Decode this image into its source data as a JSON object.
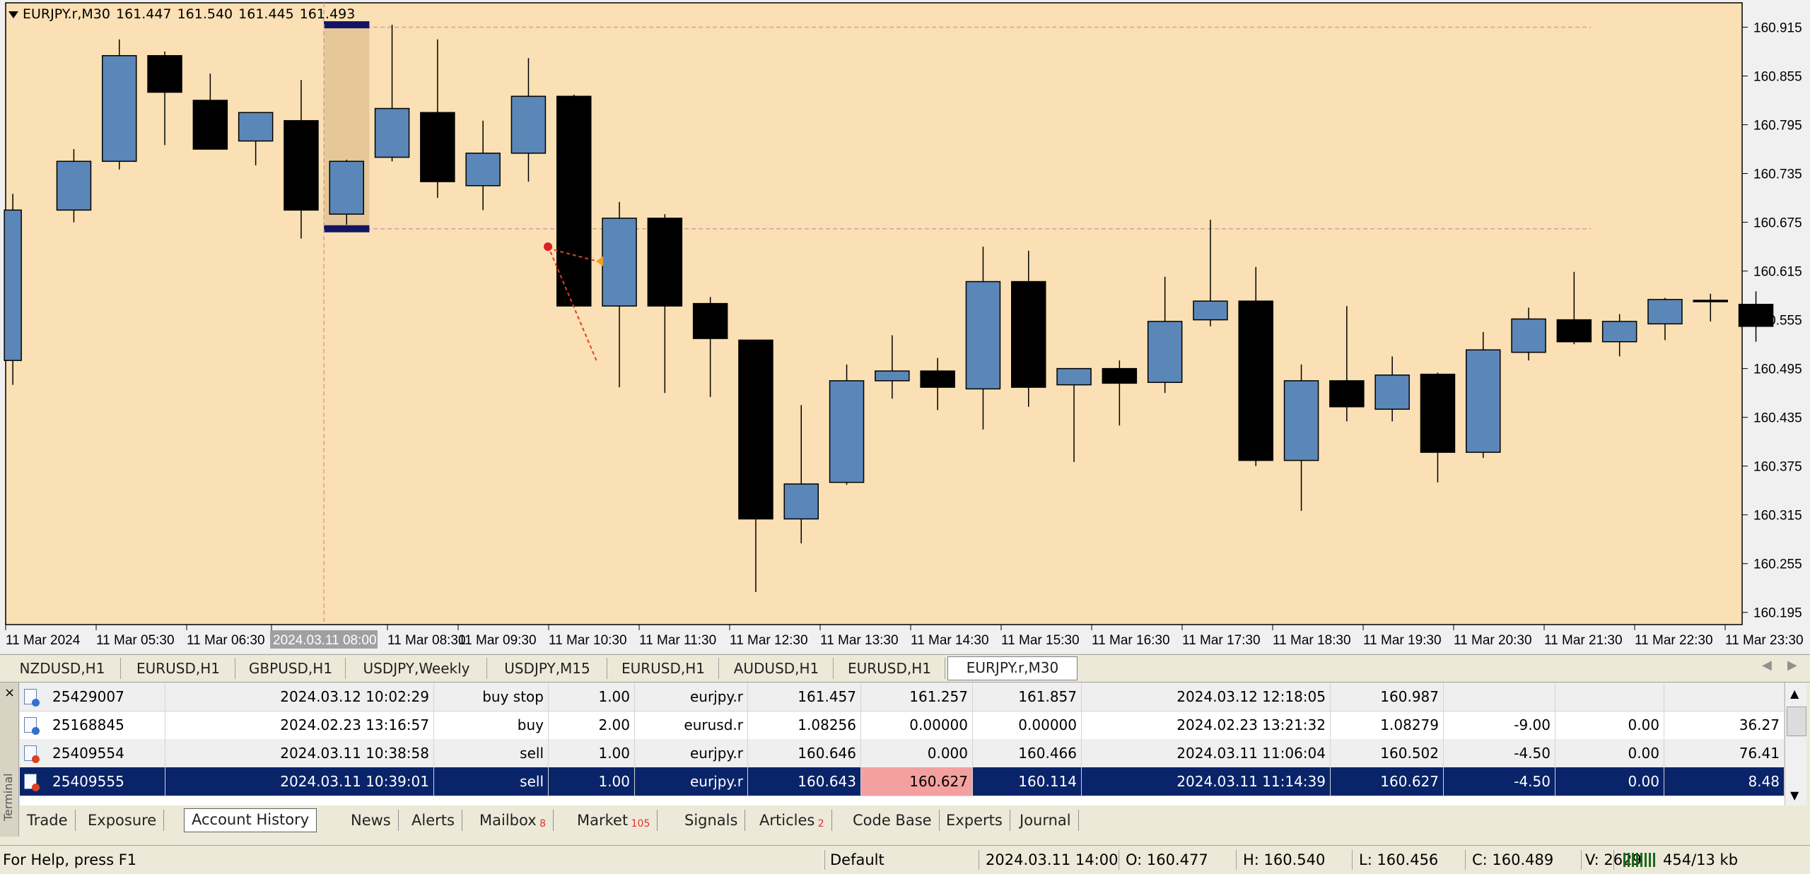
{
  "chart": {
    "symbol": "EURJPY.r,M30",
    "open": "161.447",
    "high": "161.540",
    "low": "161.445",
    "close": "161.493",
    "price_min": 160.18,
    "price_max": 160.945,
    "y_labels": [
      "160.915",
      "160.855",
      "160.795",
      "160.735",
      "160.675",
      "160.615",
      "160.555",
      "160.495",
      "160.435",
      "160.375",
      "160.315",
      "160.255",
      "160.195"
    ],
    "x_labels": [
      "11 Mar 2024",
      "11 Mar 05:30",
      "11 Mar 06:30",
      "2024.03.11 08:00",
      "11 Mar 08:30",
      "11 Mar 09:30",
      "11 Mar 10:30",
      "11 Mar 11:30",
      "11 Mar 12:30",
      "11 Mar 13:30",
      "11 Mar 14:30",
      "11 Mar 15:30",
      "11 Mar 16:30",
      "11 Mar 17:30",
      "11 Mar 18:30",
      "11 Mar 19:30",
      "11 Mar 20:30",
      "11 Mar 21:30",
      "11 Mar 22:30",
      "11 Mar 23:30"
    ],
    "highlight_x_label": "2024.03.11 08:00",
    "level_lines": [
      160.915,
      160.667
    ],
    "colors": {
      "background": "#fae0b4",
      "bull": "#5b87b8",
      "bear": "#000000",
      "highlight_band": "#e6c898",
      "level": "#d0a0a8"
    },
    "candles": [
      {
        "o": 160.505,
        "h": 160.71,
        "l": 160.475,
        "c": 160.69
      },
      {
        "o": 160.69,
        "h": 160.765,
        "l": 160.675,
        "c": 160.75
      },
      {
        "o": 160.75,
        "h": 160.9,
        "l": 160.74,
        "c": 160.88
      },
      {
        "o": 160.88,
        "h": 160.885,
        "l": 160.77,
        "c": 160.835
      },
      {
        "o": 160.825,
        "h": 160.858,
        "l": 160.77,
        "c": 160.765
      },
      {
        "o": 160.775,
        "h": 160.808,
        "l": 160.745,
        "c": 160.81
      },
      {
        "o": 160.8,
        "h": 160.85,
        "l": 160.655,
        "c": 160.69
      },
      {
        "o": 160.685,
        "h": 160.752,
        "l": 160.672,
        "c": 160.75
      },
      {
        "o": 160.755,
        "h": 160.918,
        "l": 160.75,
        "c": 160.815
      },
      {
        "o": 160.81,
        "h": 160.9,
        "l": 160.705,
        "c": 160.725
      },
      {
        "o": 160.72,
        "h": 160.8,
        "l": 160.69,
        "c": 160.76
      },
      {
        "o": 160.76,
        "h": 160.877,
        "l": 160.725,
        "c": 160.83
      },
      {
        "o": 160.83,
        "h": 160.832,
        "l": 160.57,
        "c": 160.572
      },
      {
        "o": 160.572,
        "h": 160.7,
        "l": 160.472,
        "c": 160.68
      },
      {
        "o": 160.68,
        "h": 160.685,
        "l": 160.465,
        "c": 160.572
      },
      {
        "o": 160.575,
        "h": 160.583,
        "l": 160.46,
        "c": 160.532
      },
      {
        "o": 160.53,
        "h": 160.53,
        "l": 160.22,
        "c": 160.31
      },
      {
        "o": 160.31,
        "h": 160.45,
        "l": 160.28,
        "c": 160.353
      },
      {
        "o": 160.355,
        "h": 160.5,
        "l": 160.352,
        "c": 160.48
      },
      {
        "o": 160.48,
        "h": 160.536,
        "l": 160.458,
        "c": 160.492
      },
      {
        "o": 160.492,
        "h": 160.508,
        "l": 160.444,
        "c": 160.472
      },
      {
        "o": 160.47,
        "h": 160.645,
        "l": 160.42,
        "c": 160.602
      },
      {
        "o": 160.602,
        "h": 160.64,
        "l": 160.448,
        "c": 160.472
      },
      {
        "o": 160.475,
        "h": 160.495,
        "l": 160.38,
        "c": 160.495
      },
      {
        "o": 160.495,
        "h": 160.505,
        "l": 160.425,
        "c": 160.477
      },
      {
        "o": 160.478,
        "h": 160.608,
        "l": 160.465,
        "c": 160.553
      },
      {
        "o": 160.555,
        "h": 160.678,
        "l": 160.547,
        "c": 160.578
      },
      {
        "o": 160.578,
        "h": 160.62,
        "l": 160.375,
        "c": 160.382
      },
      {
        "o": 160.382,
        "h": 160.5,
        "l": 160.32,
        "c": 160.48
      },
      {
        "o": 160.48,
        "h": 160.572,
        "l": 160.43,
        "c": 160.448
      },
      {
        "o": 160.445,
        "h": 160.51,
        "l": 160.43,
        "c": 160.487
      },
      {
        "o": 160.488,
        "h": 160.49,
        "l": 160.355,
        "c": 160.392
      },
      {
        "o": 160.392,
        "h": 160.54,
        "l": 160.385,
        "c": 160.518
      },
      {
        "o": 160.515,
        "h": 160.57,
        "l": 160.505,
        "c": 160.556
      },
      {
        "o": 160.555,
        "h": 160.614,
        "l": 160.525,
        "c": 160.528
      },
      {
        "o": 160.528,
        "h": 160.562,
        "l": 160.51,
        "c": 160.553
      },
      {
        "o": 160.55,
        "h": 160.582,
        "l": 160.53,
        "c": 160.58
      },
      {
        "o": 160.579,
        "h": 160.587,
        "l": 160.553,
        "c": 160.578
      },
      {
        "o": 160.574,
        "h": 160.59,
        "l": 160.528,
        "c": 160.547
      }
    ]
  },
  "chart_tabs": [
    "NZDUSD,H1",
    "EURUSD,H1",
    "GBPUSD,H1",
    "USDJPY,Weekly",
    "USDJPY,M15",
    "EURUSD,H1",
    "AUDUSD,H1",
    "EURUSD,H1",
    "EURJPY.r,M30"
  ],
  "history": {
    "rows": [
      {
        "ticket": "25429007",
        "open_time": "2024.03.12 10:02:29",
        "type": "buy stop",
        "size": "1.00",
        "symbol": "eurjpy.r",
        "price": "161.457",
        "sl": "161.257",
        "tp": "161.857",
        "close_time": "2024.03.12 12:18:05",
        "close_price": "160.987",
        "commission": "",
        "swap": "",
        "profit": "",
        "icon": "blue"
      },
      {
        "ticket": "25168845",
        "open_time": "2024.02.23 13:16:57",
        "type": "buy",
        "size": "2.00",
        "symbol": "eurusd.r",
        "price": "1.08256",
        "sl": "0.00000",
        "tp": "0.00000",
        "close_time": "2024.02.23 13:21:32",
        "close_price": "1.08279",
        "commission": "-9.00",
        "swap": "0.00",
        "profit": "36.27",
        "icon": "blue"
      },
      {
        "ticket": "25409554",
        "open_time": "2024.03.11 10:38:58",
        "type": "sell",
        "size": "1.00",
        "symbol": "eurjpy.r",
        "price": "160.646",
        "sl": "0.000",
        "tp": "160.466",
        "close_time": "2024.03.11 11:06:04",
        "close_price": "160.502",
        "commission": "-4.50",
        "swap": "0.00",
        "profit": "76.41",
        "icon": "red"
      },
      {
        "ticket": "25409555",
        "open_time": "2024.03.11 10:39:01",
        "type": "sell",
        "size": "1.00",
        "symbol": "eurjpy.r",
        "price": "160.643",
        "sl": "160.627",
        "tp": "160.114",
        "close_time": "2024.03.11 11:14:39",
        "close_price": "160.627",
        "commission": "-4.50",
        "swap": "0.00",
        "profit": "8.48",
        "icon": "red"
      }
    ]
  },
  "terminal": {
    "side_label": "Terminal",
    "close_glyph": "×",
    "tabs": [
      {
        "label": "Trade",
        "badge": ""
      },
      {
        "label": "Exposure",
        "badge": ""
      },
      {
        "label": "Account History",
        "badge": ""
      },
      {
        "label": "News",
        "badge": ""
      },
      {
        "label": "Alerts",
        "badge": ""
      },
      {
        "label": "Mailbox",
        "badge": "8"
      },
      {
        "label": "Market",
        "badge": "105"
      },
      {
        "label": "Signals",
        "badge": ""
      },
      {
        "label": "Articles",
        "badge": "2"
      },
      {
        "label": "Code Base",
        "badge": ""
      },
      {
        "label": "Experts",
        "badge": ""
      },
      {
        "label": "Journal",
        "badge": ""
      }
    ]
  },
  "status": {
    "help": "For Help, press F1",
    "profile": "Default",
    "datetime": "2024.03.11 14:00",
    "o": "O: 160.477",
    "h": "H: 160.540",
    "l": "L: 160.456",
    "c": "C: 160.489",
    "v": "V: 2629",
    "traffic": "454/13 kb"
  }
}
